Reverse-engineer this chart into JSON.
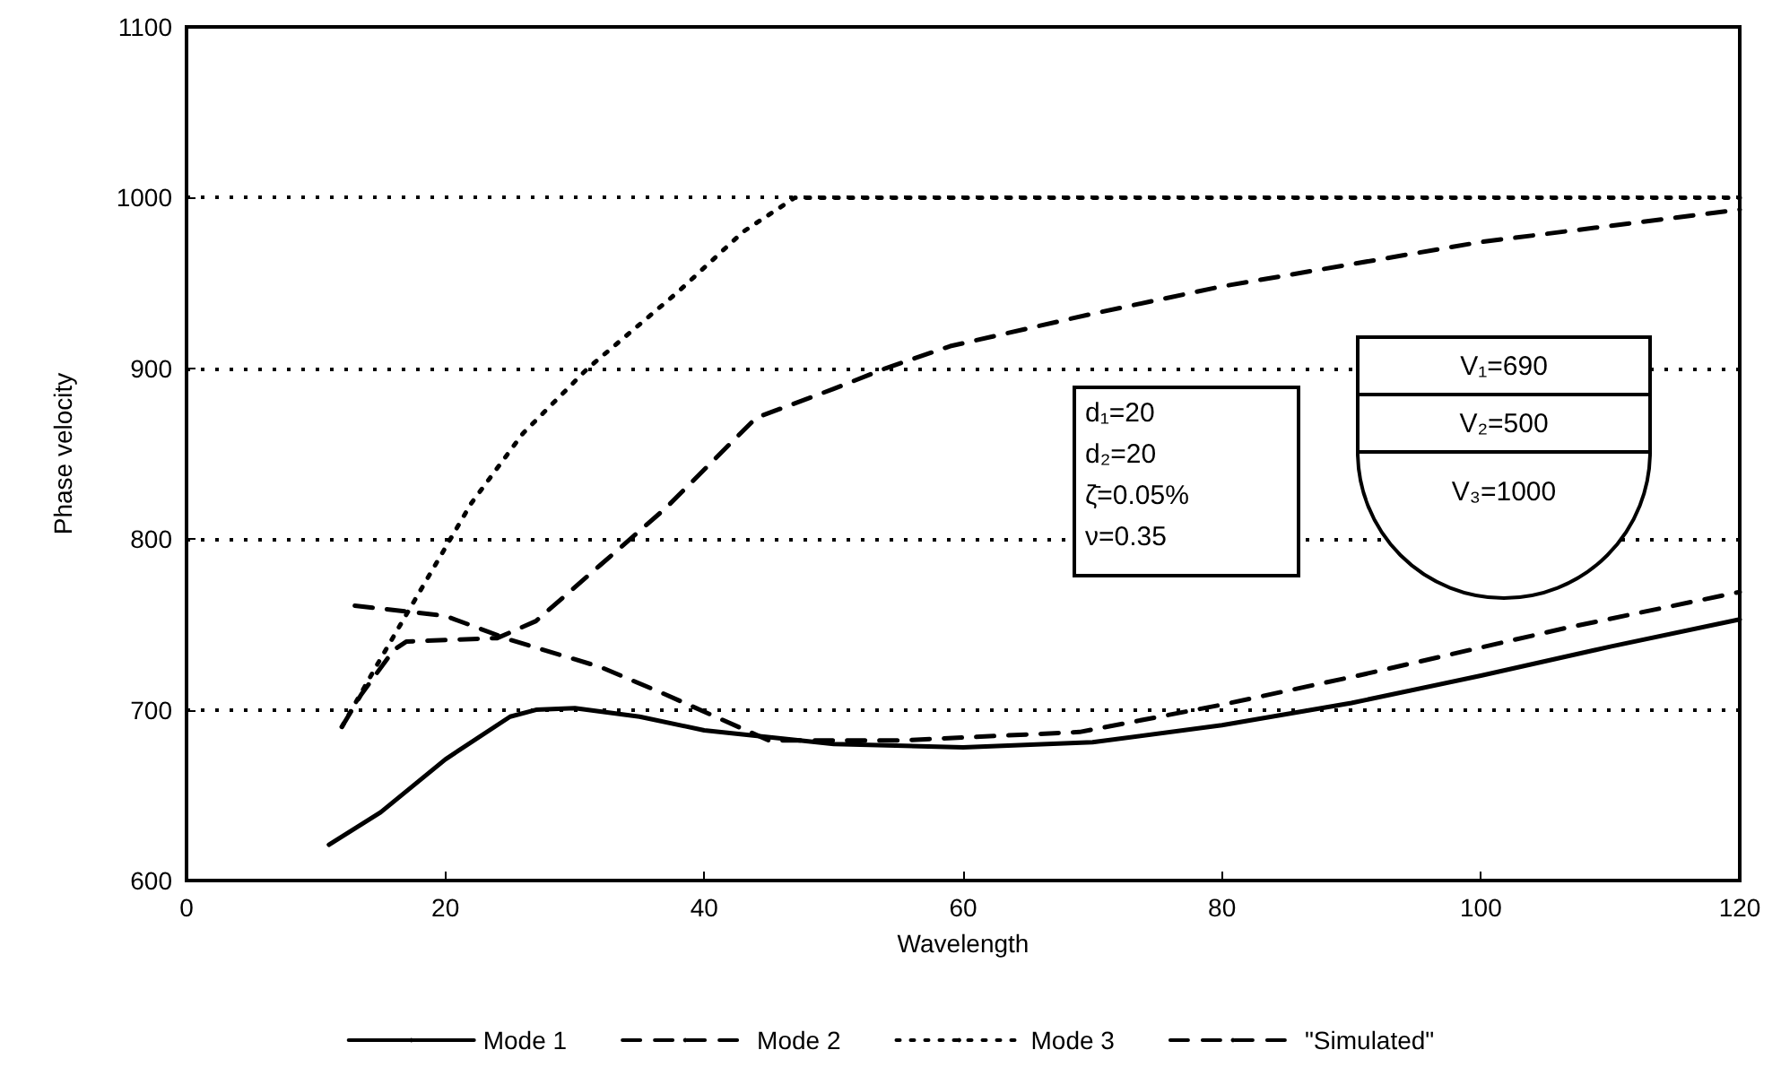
{
  "chart_data": {
    "type": "line",
    "xlabel": "Wavelength",
    "ylabel": "Phase velocity",
    "xlim": [
      0,
      120
    ],
    "xticks": [
      0,
      20,
      40,
      60,
      80,
      100,
      120
    ],
    "ylim": [
      600,
      1100
    ],
    "yticks": [
      600,
      700,
      800,
      900,
      1000,
      1100
    ],
    "grid": "y",
    "legend": "bottom",
    "series": [
      {
        "name": "Mode 1",
        "color": "#000000",
        "line_style": "solid",
        "x": [
          11,
          15,
          20,
          25,
          27,
          30,
          35,
          40,
          50,
          60,
          70,
          80,
          90,
          100,
          110,
          120
        ],
        "values": [
          621,
          640,
          671,
          696,
          700,
          701,
          696,
          688,
          680,
          678,
          681,
          691,
          704,
          720,
          737,
          753
        ]
      },
      {
        "name": "Mode 2",
        "color": "#000000",
        "line_style": "dashed",
        "x": [
          12,
          13.5,
          16,
          17,
          24,
          27,
          32,
          37,
          44,
          50,
          54,
          59,
          70,
          80,
          100,
          120
        ],
        "values": [
          690,
          709,
          735,
          740,
          742,
          752,
          785,
          818,
          871,
          888,
          900,
          913,
          932,
          948,
          974,
          993
        ]
      },
      {
        "name": "Mode 3",
        "color": "#000000",
        "line_style": "dotted",
        "x": [
          12,
          15,
          18,
          22,
          26,
          31,
          38,
          43,
          47,
          120
        ],
        "values": [
          690,
          730,
          769,
          821,
          862,
          900,
          945,
          980,
          1000,
          1000
        ]
      },
      {
        "name": "\"Simulated\"",
        "color": "#000000",
        "line_style": "dashed",
        "x": [
          13,
          20,
          25,
          32,
          37,
          45,
          55,
          69,
          80,
          90.5,
          106.6,
          120
        ],
        "values": [
          761,
          755,
          741,
          725,
          709,
          682,
          682,
          687,
          703,
          720,
          748,
          769
        ]
      }
    ],
    "annotations": [
      "d₁=20",
      "d₂=20",
      "ζ̄=0.05%",
      "ν=0.35",
      "V₁=690",
      "V₂=500",
      "V₃=1000"
    ]
  }
}
